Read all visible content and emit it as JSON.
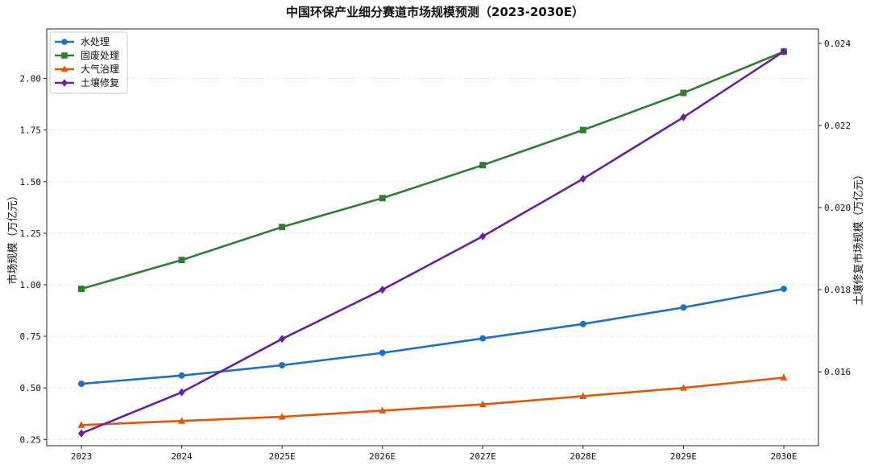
{
  "chart_data": {
    "type": "line",
    "title": "中国环保产业细分赛道市场规模预测（2023-2030E）",
    "ylabel": "市场规模（万亿元）",
    "ylabel_right": "土壤修复市场规模（万亿元）",
    "ylabel_right_color": "#7b2fa8",
    "categories": [
      "2023",
      "2024",
      "2025E",
      "2026E",
      "2027E",
      "2028E",
      "2029E",
      "2030E"
    ],
    "ylim": [
      0.22,
      2.24
    ],
    "yticks": [
      "0.25",
      "0.50",
      "0.75",
      "1.00",
      "1.25",
      "1.50",
      "1.75",
      "2.00"
    ],
    "ylim_right": [
      0.0142,
      0.02435
    ],
    "yticks_right": [
      "0.016",
      "0.018",
      "0.020",
      "0.022",
      "0.024"
    ],
    "grid": "horizontal-dashed",
    "legend_position": "top-left",
    "series": [
      {
        "name": "水处理",
        "axis": "left",
        "color": "#1f6fc5",
        "marker": "circle",
        "values": [
          0.52,
          0.56,
          0.61,
          0.67,
          0.74,
          0.81,
          0.89,
          0.98
        ]
      },
      {
        "name": "固废处理",
        "axis": "left",
        "color": "#2e7d32",
        "marker": "square",
        "values": [
          0.98,
          1.12,
          1.28,
          1.42,
          1.58,
          1.75,
          1.93,
          2.13
        ]
      },
      {
        "name": "大气治理",
        "axis": "left",
        "color": "#e0590b",
        "marker": "triangle",
        "values": [
          0.32,
          0.34,
          0.36,
          0.39,
          0.42,
          0.46,
          0.5,
          0.55
        ]
      },
      {
        "name": "土壤修复",
        "axis": "right",
        "color": "#6a1fa0",
        "marker": "diamond",
        "values": [
          0.0145,
          0.0155,
          0.0168,
          0.018,
          0.0193,
          0.0207,
          0.0222,
          0.0238
        ]
      }
    ]
  }
}
